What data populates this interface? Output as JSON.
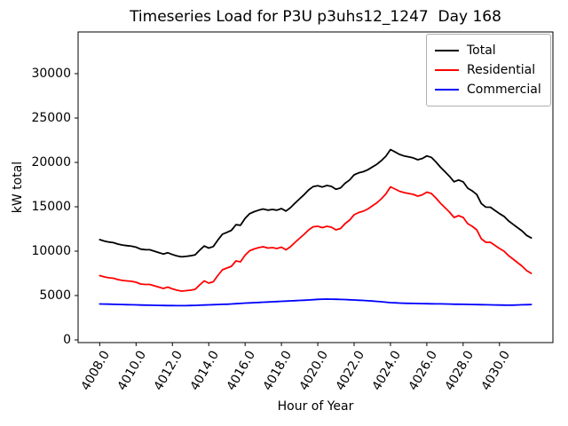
{
  "figure": {
    "title": "Timeseries Load for P3U p3uhs12_1247  Day 168",
    "xlabel": "Hour of Year",
    "ylabel": "kW total"
  },
  "chart_data": {
    "type": "line",
    "title": "Timeseries Load for P3U p3uhs12_1247  Day 168",
    "xlabel": "Hour of Year",
    "ylabel": "kW total",
    "grid": false,
    "legend_position": "upper right",
    "xlim": [
      4006.81,
      4032.94
    ],
    "ylim": [
      -300,
      34700
    ],
    "xticks": [
      4008,
      4010,
      4012,
      4014,
      4016,
      4018,
      4020,
      4022,
      4024,
      4026,
      4028,
      4030
    ],
    "xtick_labels": [
      "4008.0",
      "4010.0",
      "4012.0",
      "4014.0",
      "4016.0",
      "4018.0",
      "4020.0",
      "4022.0",
      "4024.0",
      "4026.0",
      "4028.0",
      "4030.0"
    ],
    "yticks": [
      0,
      5000,
      10000,
      15000,
      20000,
      25000,
      30000
    ],
    "ytick_labels": [
      "0",
      "5000",
      "10000",
      "15000",
      "20000",
      "25000",
      "30000"
    ],
    "x_units": "hour of year (15-minute intervals, day 168)",
    "x": [
      4008.0,
      4008.25,
      4008.5,
      4008.75,
      4009.0,
      4009.25,
      4009.5,
      4009.75,
      4010.0,
      4010.25,
      4010.5,
      4010.75,
      4011.0,
      4011.25,
      4011.5,
      4011.75,
      4012.0,
      4012.25,
      4012.5,
      4012.75,
      4013.0,
      4013.25,
      4013.5,
      4013.75,
      4014.0,
      4014.25,
      4014.5,
      4014.75,
      4015.0,
      4015.25,
      4015.5,
      4015.75,
      4016.0,
      4016.25,
      4016.5,
      4016.75,
      4017.0,
      4017.25,
      4017.5,
      4017.75,
      4018.0,
      4018.25,
      4018.5,
      4018.75,
      4019.0,
      4019.25,
      4019.5,
      4019.75,
      4020.0,
      4020.25,
      4020.5,
      4020.75,
      4021.0,
      4021.25,
      4021.5,
      4021.75,
      4022.0,
      4022.25,
      4022.5,
      4022.75,
      4023.0,
      4023.25,
      4023.5,
      4023.75,
      4024.0,
      4024.25,
      4024.5,
      4024.75,
      4025.0,
      4025.25,
      4025.5,
      4025.75,
      4026.0,
      4026.25,
      4026.5,
      4026.75,
      4027.0,
      4027.25,
      4027.5,
      4027.75,
      4028.0,
      4028.25,
      4028.5,
      4028.75,
      4029.0,
      4029.25,
      4029.5,
      4029.75,
      4030.0,
      4030.25,
      4030.5,
      4030.75,
      4031.0,
      4031.25,
      4031.5,
      4031.75
    ],
    "series": [
      {
        "name": "Total",
        "color": "#000000",
        "values": [
          11300,
          11140,
          11030,
          10960,
          10800,
          10690,
          10625,
          10560,
          10450,
          10230,
          10170,
          10160,
          10000,
          9840,
          9680,
          9825,
          9620,
          9465,
          9360,
          9415,
          9480,
          9595,
          10115,
          10580,
          10350,
          10520,
          11240,
          11905,
          12120,
          12350,
          12980,
          12915,
          13700,
          14225,
          14450,
          14625,
          14750,
          14625,
          14700,
          14625,
          14800,
          14525,
          14900,
          15425,
          15900,
          16375,
          16900,
          17285,
          17370,
          17235,
          17400,
          17295,
          16980,
          17115,
          17650,
          18025,
          18600,
          18825,
          18950,
          19165,
          19480,
          19790,
          20200,
          20700,
          21450,
          21180,
          20900,
          20735,
          20620,
          20510,
          20300,
          20440,
          20730,
          20570,
          20060,
          19455,
          18950,
          18435,
          17820,
          18015,
          17810,
          17100,
          16790,
          16380,
          15370,
          14960,
          14950,
          14590,
          14230,
          13920,
          13410,
          13020,
          12640,
          12255,
          11770,
          11490
        ]
      },
      {
        "name": "Residential",
        "color": "#ff0000",
        "values": [
          7250,
          7100,
          7000,
          6950,
          6800,
          6700,
          6650,
          6600,
          6500,
          6300,
          6250,
          6250,
          6100,
          5950,
          5800,
          5950,
          5750,
          5600,
          5500,
          5550,
          5600,
          5700,
          6200,
          6650,
          6400,
          6550,
          7250,
          7900,
          8100,
          8300,
          8900,
          8800,
          9550,
          10050,
          10250,
          10400,
          10500,
          10350,
          10400,
          10300,
          10450,
          10150,
          10500,
          11000,
          11450,
          11900,
          12400,
          12750,
          12800,
          12650,
          12800,
          12700,
          12400,
          12550,
          13100,
          13500,
          14100,
          14350,
          14500,
          14750,
          15100,
          15450,
          15900,
          16450,
          17250,
          17000,
          16750,
          16600,
          16500,
          16400,
          16200,
          16350,
          16650,
          16500,
          16000,
          15400,
          14900,
          14400,
          13800,
          14000,
          13800,
          13100,
          12800,
          12400,
          11400,
          11000,
          11000,
          10650,
          10300,
          10000,
          9500,
          9100,
          8700,
          8300,
          7800,
          7500
        ]
      },
      {
        "name": "Commercial",
        "color": "#0000ff",
        "values": [
          4050,
          4040,
          4030,
          4010,
          4000,
          3990,
          3975,
          3960,
          3950,
          3930,
          3920,
          3910,
          3900,
          3890,
          3880,
          3875,
          3870,
          3865,
          3860,
          3865,
          3880,
          3895,
          3915,
          3930,
          3950,
          3970,
          3990,
          4005,
          4020,
          4050,
          4080,
          4115,
          4150,
          4175,
          4200,
          4225,
          4250,
          4275,
          4300,
          4325,
          4350,
          4375,
          4400,
          4425,
          4450,
          4475,
          4500,
          4535,
          4570,
          4585,
          4600,
          4595,
          4580,
          4565,
          4550,
          4525,
          4500,
          4475,
          4450,
          4415,
          4380,
          4340,
          4300,
          4250,
          4200,
          4180,
          4150,
          4135,
          4120,
          4110,
          4100,
          4090,
          4080,
          4070,
          4060,
          4055,
          4050,
          4035,
          4020,
          4015,
          4010,
          4000,
          3990,
          3980,
          3970,
          3960,
          3950,
          3940,
          3930,
          3920,
          3910,
          3920,
          3940,
          3955,
          3970,
          3990
        ]
      }
    ]
  }
}
